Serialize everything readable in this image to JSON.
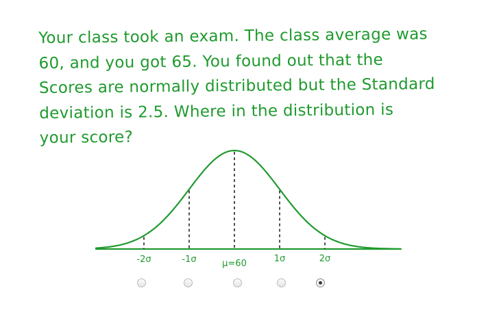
{
  "question": {
    "text": "Your class took an exam. The class average was\n60, and you got 65. You found out that the\nScores are normally distributed but the Standard\ndeviation is 2.5. Where in the distribution is\nyour score?"
  },
  "diagram": {
    "ink_color": "#1f9a2e",
    "labels": [
      "-2σ",
      "-1σ",
      "μ=60",
      "1σ",
      "2σ"
    ]
  },
  "choices": {
    "count": 5,
    "selected_index": 4
  }
}
